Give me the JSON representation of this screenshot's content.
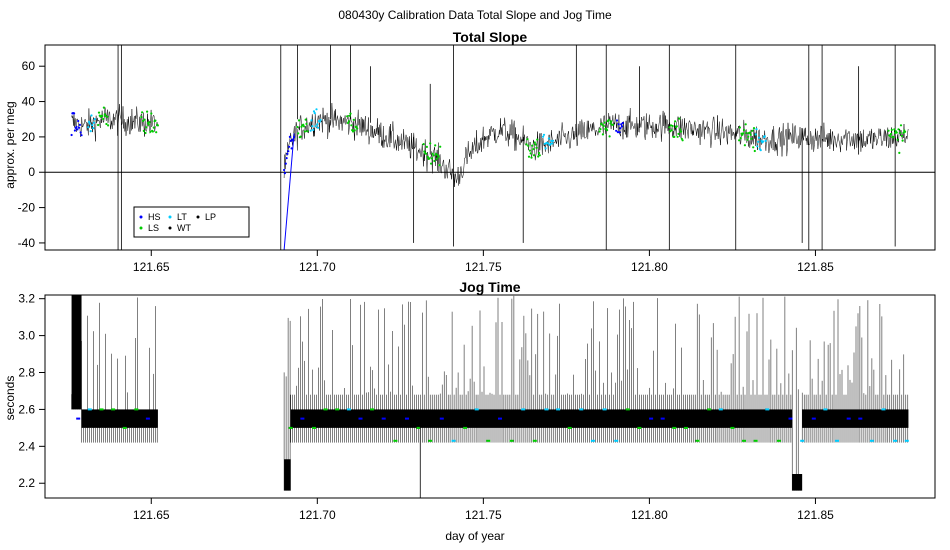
{
  "figure": {
    "suptitle": "080430y   Calibration Data Total Slope and Jog Time",
    "xlabel": "day of year"
  },
  "chart_data": [
    {
      "type": "line",
      "title": "Total Slope",
      "xlabel": "",
      "ylabel": "approx. per meg",
      "xlim": [
        121.618,
        121.886
      ],
      "ylim": [
        -44,
        72
      ],
      "xticks": [
        121.65,
        121.7,
        121.75,
        121.8,
        121.85
      ],
      "xtick_labels": [
        "121.65",
        "121.70",
        "121.75",
        "121.80",
        "121.85"
      ],
      "yticks": [
        -40,
        -20,
        0,
        20,
        40,
        60
      ],
      "ytick_labels": [
        "-40",
        "-20",
        "0",
        "20",
        "40",
        "60"
      ],
      "hline": 0,
      "gaps": [
        [
          121.652,
          121.69
        ]
      ],
      "baseline": {
        "x": [
          121.626,
          121.63,
          121.636,
          121.642,
          121.648,
          121.652,
          121.69,
          121.692,
          121.695,
          121.7,
          121.705,
          121.71,
          121.715,
          121.72,
          121.725,
          121.73,
          121.735,
          121.74,
          121.742,
          121.745,
          121.75,
          121.755,
          121.76,
          121.765,
          121.77,
          121.775,
          121.78,
          121.785,
          121.79,
          121.795,
          121.8,
          121.805,
          121.81,
          121.815,
          121.82,
          121.825,
          121.83,
          121.835,
          121.84,
          121.845,
          121.85,
          121.855,
          121.86,
          121.865,
          121.87,
          121.875,
          121.878
        ],
        "y": [
          28,
          26,
          30,
          29,
          28,
          27,
          0,
          18,
          25,
          30,
          29,
          28,
          25,
          21,
          17,
          13,
          9,
          0,
          -4,
          8,
          19,
          24,
          20,
          14,
          16,
          19,
          22,
          25,
          27,
          26,
          26,
          27,
          25,
          24,
          23,
          22,
          20,
          19,
          19,
          20,
          19,
          19,
          20,
          18,
          19,
          20,
          21
        ]
      },
      "series": [
        {
          "name": "HS",
          "color": "#0000ff",
          "marker": "point"
        },
        {
          "name": "LS",
          "color": "#00cc00",
          "marker": "point"
        },
        {
          "name": "LT",
          "color": "#00ccff",
          "marker": "point"
        },
        {
          "name": "WT",
          "color": "#000000",
          "marker": "point"
        },
        {
          "name": "LP",
          "color": "#000000",
          "marker": "point"
        }
      ],
      "highlight_segments": [
        {
          "color": "#0000ff",
          "x": [
            121.626,
            121.629
          ]
        },
        {
          "color": "#00ccff",
          "x": [
            121.631,
            121.633
          ]
        },
        {
          "color": "#00cc00",
          "x": [
            121.634,
            121.637
          ]
        },
        {
          "color": "#00cc00",
          "x": [
            121.647,
            121.652
          ]
        },
        {
          "color": "#0000ff",
          "x": [
            121.69,
            121.693
          ]
        },
        {
          "color": "#00cc00",
          "x": [
            121.694,
            121.697
          ]
        },
        {
          "color": "#00ccff",
          "x": [
            121.698,
            121.701
          ]
        },
        {
          "color": "#00cc00",
          "x": [
            121.709,
            121.712
          ]
        },
        {
          "color": "#00cc00",
          "x": [
            121.732,
            121.737
          ]
        },
        {
          "color": "#00cc00",
          "x": [
            121.763,
            121.767
          ]
        },
        {
          "color": "#00ccff",
          "x": [
            121.768,
            121.771
          ]
        },
        {
          "color": "#00cc00",
          "x": [
            121.785,
            121.789
          ]
        },
        {
          "color": "#0000ff",
          "x": [
            121.79,
            121.792
          ]
        },
        {
          "color": "#00cc00",
          "x": [
            121.806,
            121.81
          ]
        },
        {
          "color": "#00cc00",
          "x": [
            121.827,
            121.832
          ]
        },
        {
          "color": "#00ccff",
          "x": [
            121.832,
            121.835
          ]
        },
        {
          "color": "#00cc00",
          "x": [
            121.872,
            121.877
          ]
        }
      ],
      "spikes": [
        {
          "x": 121.64,
          "y_from": -44,
          "y_to": 72
        },
        {
          "x": 121.641,
          "y_from": -44,
          "y_to": 72
        },
        {
          "x": 121.689,
          "y_from": -44,
          "y_to": 72
        },
        {
          "x": 121.694,
          "y_from": 30,
          "y_to": 72
        },
        {
          "x": 121.704,
          "y_from": 30,
          "y_to": 72
        },
        {
          "x": 121.71,
          "y_from": 30,
          "y_to": 72
        },
        {
          "x": 121.716,
          "y_from": 28,
          "y_to": 60
        },
        {
          "x": 121.729,
          "y_from": -40,
          "y_to": 20
        },
        {
          "x": 121.734,
          "y_from": 10,
          "y_to": 50
        },
        {
          "x": 121.741,
          "y_from": -42,
          "y_to": 72
        },
        {
          "x": 121.762,
          "y_from": -40,
          "y_to": 20
        },
        {
          "x": 121.778,
          "y_from": 20,
          "y_to": 72
        },
        {
          "x": 121.787,
          "y_from": -44,
          "y_to": 72
        },
        {
          "x": 121.797,
          "y_from": 25,
          "y_to": 60
        },
        {
          "x": 121.806,
          "y_from": -44,
          "y_to": 72
        },
        {
          "x": 121.826,
          "y_from": -44,
          "y_to": 72
        },
        {
          "x": 121.846,
          "y_from": -40,
          "y_to": 25
        },
        {
          "x": 121.848,
          "y_from": -44,
          "y_to": 72
        },
        {
          "x": 121.852,
          "y_from": -44,
          "y_to": 72
        },
        {
          "x": 121.863,
          "y_from": 10,
          "y_to": 60
        },
        {
          "x": 121.874,
          "y_from": -42,
          "y_to": 72
        }
      ],
      "legend": {
        "placement": "bottom-left",
        "entries": [
          "HS",
          "LS",
          "LT",
          "WT",
          "LP"
        ]
      }
    },
    {
      "type": "line",
      "title": "Jog Time",
      "xlabel": "day of year",
      "ylabel": "seconds",
      "xlim": [
        121.618,
        121.886
      ],
      "ylim": [
        2.12,
        3.22
      ],
      "xticks": [
        121.65,
        121.7,
        121.75,
        121.8,
        121.85
      ],
      "xtick_labels": [
        "121.65",
        "121.70",
        "121.75",
        "121.80",
        "121.85"
      ],
      "yticks": [
        2.2,
        2.4,
        2.6,
        2.8,
        3.0,
        3.2
      ],
      "ytick_labels": [
        "2.2",
        "2.4",
        "2.6",
        "2.8",
        "3.0",
        "3.2"
      ],
      "gaps": [
        [
          121.652,
          121.69
        ]
      ],
      "segments": [
        {
          "x": [
            121.626,
            121.629
          ],
          "low": 2.6,
          "high": 3.22
        },
        {
          "x": [
            121.629,
            121.652
          ],
          "low": 2.42,
          "high": 2.5
        },
        {
          "x": [
            121.69,
            121.692
          ],
          "low": 2.16,
          "high": 2.33
        },
        {
          "x": [
            121.692,
            121.843
          ],
          "low": 2.42,
          "high": 2.68
        },
        {
          "x": [
            121.843,
            121.846
          ],
          "low": 2.16,
          "high": 2.25
        },
        {
          "x": [
            121.846,
            121.878
          ],
          "low": 2.42,
          "high": 2.68
        }
      ],
      "dense_band": {
        "low": 2.5,
        "high": 2.6
      },
      "upper_range": [
        2.68,
        3.22
      ],
      "spike_spacing": 0.0012,
      "markers": [
        {
          "color": "#00cc00",
          "y": 2.43
        },
        {
          "color": "#00cc00",
          "y": 2.5
        },
        {
          "color": "#00cc00",
          "y": 2.6
        },
        {
          "color": "#00ccff",
          "y": 2.43
        },
        {
          "color": "#00ccff",
          "y": 2.6
        },
        {
          "color": "#0000ff",
          "y": 2.55
        }
      ]
    }
  ]
}
